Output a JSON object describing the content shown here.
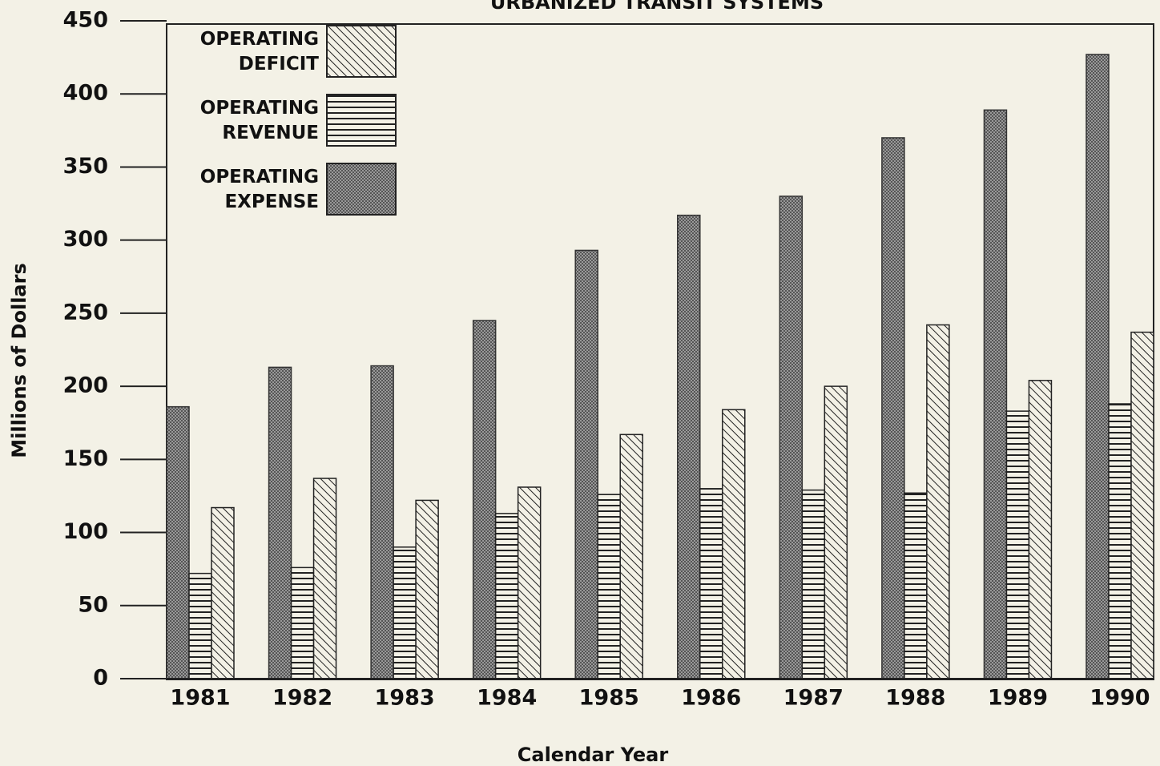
{
  "chart_data": {
    "type": "bar",
    "title": "URBANIZED TRANSIT SYSTEMS",
    "x_label": "Calendar Year",
    "y_label": "Millions of Dollars",
    "categories": [
      "1981",
      "1982",
      "1983",
      "1984",
      "1985",
      "1986",
      "1987",
      "1988",
      "1989",
      "1990"
    ],
    "series": [
      {
        "name": "OPERATING EXPENSE",
        "color": "#333333",
        "pattern": "crosshatch",
        "values": [
          186,
          213,
          214,
          245,
          293,
          317,
          330,
          370,
          389,
          427
        ]
      },
      {
        "name": "OPERATING REVENUE",
        "color": "#222222",
        "pattern": "horizontal",
        "values": [
          72,
          76,
          90,
          113,
          126,
          130,
          129,
          127,
          183,
          188
        ]
      },
      {
        "name": "OPERATING DEFICIT",
        "color": "#222222",
        "pattern": "diagonal",
        "values": [
          117,
          137,
          122,
          131,
          167,
          184,
          200,
          242,
          204,
          237
        ]
      }
    ],
    "ylim": [
      0,
      450
    ],
    "yticks": [
      0,
      50,
      100,
      150,
      200,
      250,
      300,
      350,
      400,
      450
    ],
    "legend": "top-left"
  }
}
